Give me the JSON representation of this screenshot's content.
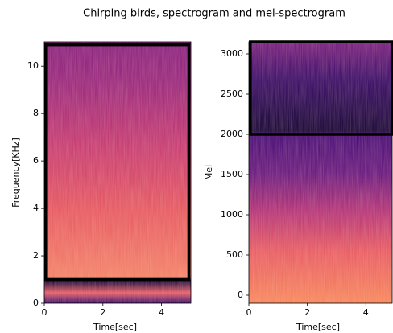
{
  "title": "Chirping birds, spectrogram and mel-spectrogram",
  "chart_data": [
    {
      "type": "spectrogram",
      "xlabel": "Time[sec]",
      "ylabel": "Frequency[KHz]",
      "xlim": [
        0,
        5
      ],
      "xticks": [
        0,
        2,
        4
      ],
      "ylim": [
        0,
        11.025
      ],
      "yticks": [
        0,
        2,
        4,
        6,
        8,
        10
      ],
      "highlight": {
        "x": [
          0.05,
          4.93
        ],
        "y": [
          1,
          10.9
        ]
      }
    },
    {
      "type": "spectrogram",
      "xlabel": "Time[sec]",
      "ylabel": "Mel",
      "xlim": [
        0,
        4.9
      ],
      "xticks": [
        0,
        2,
        4
      ],
      "ylim": [
        -100,
        3150
      ],
      "yticks": [
        0,
        500,
        1000,
        1500,
        2000,
        2500,
        3000
      ],
      "highlight": {
        "x": [
          0.05,
          4.9
        ],
        "y": [
          2000,
          3150
        ]
      }
    }
  ]
}
